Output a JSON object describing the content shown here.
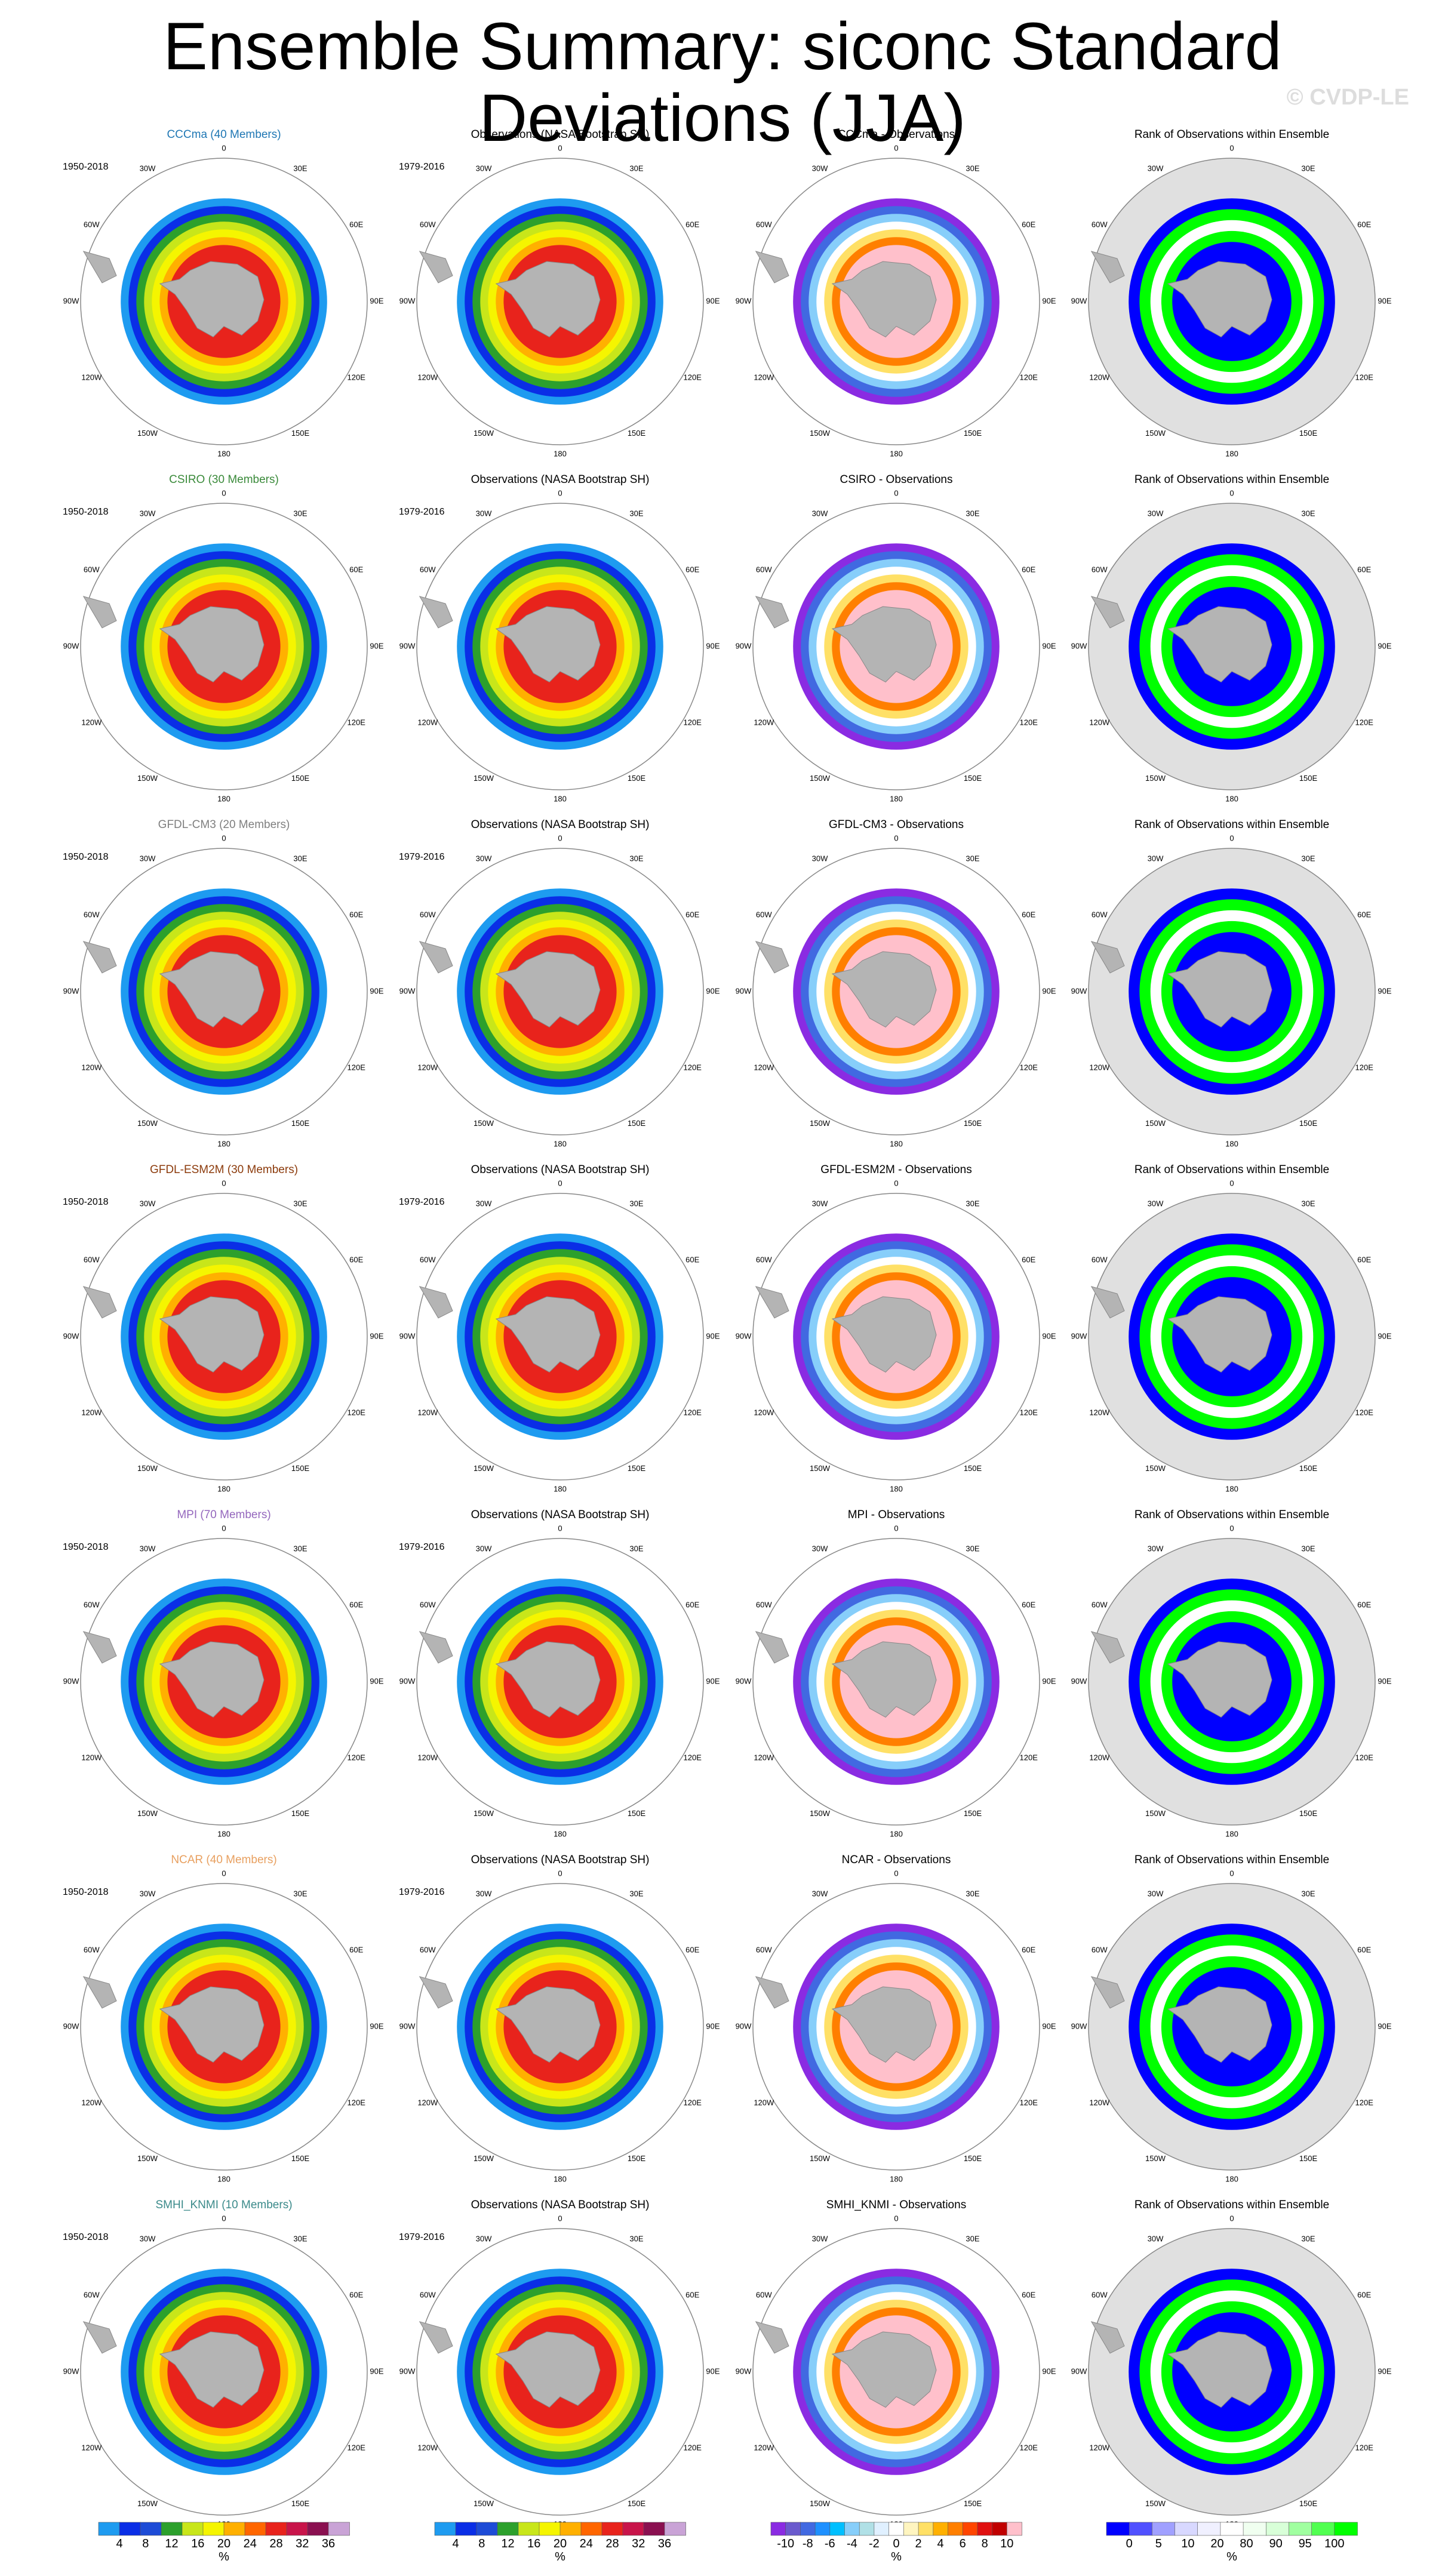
{
  "title": "Ensemble Summary: siconc Standard Deviations (JJA)",
  "copyright": "© CVDP-LE",
  "obs_title": "Observations (NASA Bootstrap SH)",
  "rank_title": "Rank of Observations within Ensemble",
  "model_period": "1950-2018",
  "obs_period": "1979-2016",
  "lon_labels": [
    "0",
    "30E",
    "60E",
    "90E",
    "120E",
    "150E",
    "180",
    "150W",
    "120W",
    "90W",
    "60W",
    "30W"
  ],
  "rows": [
    {
      "model_title": "CCCma (40 Members)",
      "diff_title": "CCCma - Observations",
      "color": "#1f77b4"
    },
    {
      "model_title": "CSIRO (30 Members)",
      "diff_title": "CSIRO - Observations",
      "color": "#3a8a3a"
    },
    {
      "model_title": "GFDL-CM3 (20 Members)",
      "diff_title": "GFDL-CM3 - Observations",
      "color": "#7f7f7f"
    },
    {
      "model_title": "GFDL-ESM2M (30 Members)",
      "diff_title": "GFDL-ESM2M - Observations",
      "color": "#8c3b0c"
    },
    {
      "model_title": "MPI (70 Members)",
      "diff_title": "MPI - Observations",
      "color": "#9467bd"
    },
    {
      "model_title": "NCAR (40 Members)",
      "diff_title": "NCAR - Observations",
      "color": "#e8a060"
    },
    {
      "model_title": "SMHI_KNMI (10 Members)",
      "diff_title": "SMHI_KNMI - Observations",
      "color": "#3b8a8a"
    }
  ],
  "colorbars": [
    {
      "unit": "%",
      "colors": [
        "#1e9bf0",
        "#0a2ee6",
        "#1d4bd6",
        "#2ca02c",
        "#c8e61a",
        "#f5f500",
        "#ffb000",
        "#ff6600",
        "#e8231c",
        "#c8144a",
        "#8a1050",
        "#c9a3d6"
      ],
      "labels": [
        "4",
        "8",
        "12",
        "16",
        "20",
        "24",
        "28",
        "32",
        "36"
      ]
    },
    {
      "unit": "%",
      "colors": [
        "#1e9bf0",
        "#0a2ee6",
        "#1d4bd6",
        "#2ca02c",
        "#c8e61a",
        "#f5f500",
        "#ffb000",
        "#ff6600",
        "#e8231c",
        "#c8144a",
        "#8a1050",
        "#c9a3d6"
      ],
      "labels": [
        "4",
        "8",
        "12",
        "16",
        "20",
        "24",
        "28",
        "32",
        "36"
      ]
    },
    {
      "unit": "%",
      "colors": [
        "#8a2be2",
        "#6a5acd",
        "#4169e1",
        "#1e90ff",
        "#00bfff",
        "#87cefa",
        "#b0e0e6",
        "#e0f0ff",
        "#ffffff",
        "#fff5c0",
        "#ffe066",
        "#ffb000",
        "#ff7f00",
        "#ff4500",
        "#e01010",
        "#c00000",
        "#ffc0cb"
      ],
      "labels": [
        "-10",
        "-8",
        "-6",
        "-4",
        "-2",
        "0",
        "2",
        "4",
        "6",
        "8",
        "10"
      ]
    },
    {
      "unit": "%",
      "colors": [
        "#0000ff",
        "#5050ff",
        "#a0a0ff",
        "#d8d8ff",
        "#f0f0ff",
        "#ffffff",
        "#f0fff0",
        "#d8ffd8",
        "#a0ffa0",
        "#50ff50",
        "#00ff00"
      ],
      "labels": [
        "0",
        "5",
        "10",
        "20",
        "80",
        "90",
        "95",
        "100"
      ]
    }
  ],
  "chart_data": {
    "type": "heatmap",
    "title": "Ensemble Summary: siconc Standard Deviations (JJA)",
    "projection": "south polar stereographic",
    "panel_grid": {
      "rows": 7,
      "columns": 4
    },
    "columns": [
      "model ensemble standard deviation",
      "Observations (NASA Bootstrap SH)",
      "model minus observations",
      "Rank of Observations within Ensemble"
    ],
    "std_colorbar_levels": [
      4,
      8,
      12,
      16,
      20,
      24,
      28,
      32,
      36
    ],
    "diff_colorbar_levels": [
      -10,
      -8,
      -6,
      -4,
      -2,
      0,
      2,
      4,
      6,
      8,
      10
    ],
    "rank_colorbar_levels": [
      0,
      5,
      10,
      20,
      80,
      90,
      95,
      100
    ]
  }
}
